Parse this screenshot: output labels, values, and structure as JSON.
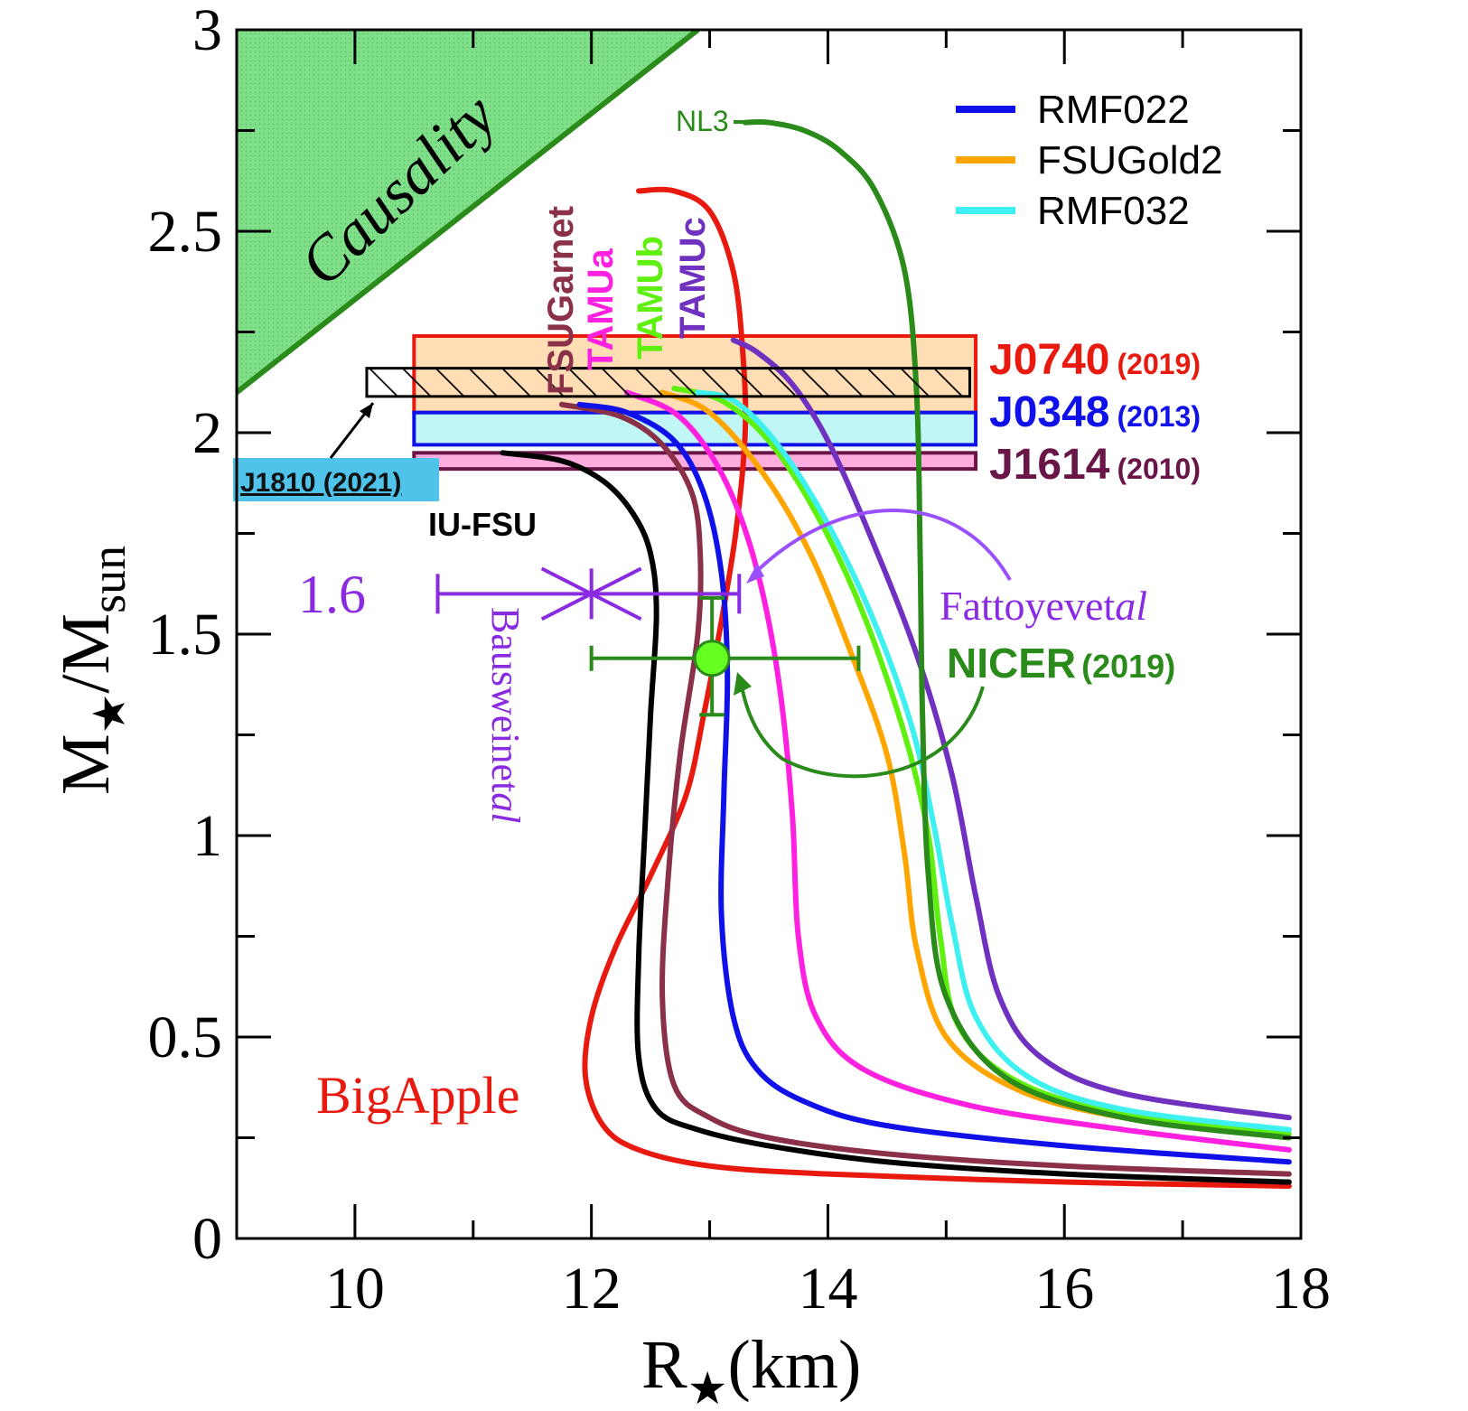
{
  "chart_data": {
    "type": "line",
    "xlabel": "R",
    "xlabel_sub": "★",
    "xlabel_unit": "(km)",
    "ylabel_main": "M",
    "ylabel_star": "★",
    "ylabel_mid": "/M",
    "ylabel_sub": "sun",
    "xlim": [
      9,
      18
    ],
    "ylim": [
      0,
      3
    ],
    "xticks": [
      10,
      12,
      14,
      16,
      18
    ],
    "yticks": [
      0,
      0.5,
      1,
      1.5,
      2,
      2.5,
      3
    ],
    "xtick_labels": [
      "10",
      "12",
      "14",
      "16",
      "18"
    ],
    "ytick_labels": [
      "0",
      "0.5",
      "1",
      "1.5",
      "2",
      "2.5",
      "3"
    ],
    "grid": false,
    "legend_position": "top-right",
    "legend": [
      {
        "name": "RMF022",
        "color": "#1010e8"
      },
      {
        "name": "FSUGold2",
        "color": "#ffa500"
      },
      {
        "name": "RMF032",
        "color": "#3ff0f0"
      }
    ],
    "causality": {
      "label": "Causality",
      "x": [
        9,
        9,
        12.9
      ],
      "y": [
        2.1,
        3,
        3
      ],
      "color": "#7fe089",
      "edge": "#2a8a1a"
    },
    "series": [
      {
        "name": "",
        "curve_label": "BigApple",
        "color": "#e81a10",
        "x": [
          17.9,
          16,
          14,
          13,
          12.4,
          12.1,
          11.95,
          12.0,
          12.2,
          12.5,
          12.8,
          12.95,
          13.08,
          13.22,
          13.3,
          13.28,
          13.2,
          13.0,
          12.7,
          12.4
        ],
        "y": [
          0.13,
          0.14,
          0.16,
          0.18,
          0.22,
          0.28,
          0.4,
          0.55,
          0.72,
          0.9,
          1.1,
          1.3,
          1.5,
          1.75,
          2.0,
          2.2,
          2.4,
          2.55,
          2.6,
          2.6
        ]
      },
      {
        "name": "",
        "curve_label": "IU-FSU",
        "color": "#000000",
        "x": [
          17.9,
          16,
          14.5,
          13.5,
          12.9,
          12.55,
          12.4,
          12.4,
          12.45,
          12.5,
          12.55,
          12.5,
          12.35,
          12.1,
          11.75,
          11.25
        ],
        "y": [
          0.14,
          0.16,
          0.19,
          0.23,
          0.27,
          0.32,
          0.45,
          0.7,
          1.0,
          1.3,
          1.55,
          1.7,
          1.8,
          1.88,
          1.93,
          1.95
        ]
      },
      {
        "name": "",
        "curve_label": "FSUGarnet",
        "color": "#8a3048",
        "x": [
          17.9,
          16,
          14.5,
          13.5,
          13.0,
          12.7,
          12.6,
          12.65,
          12.75,
          12.9,
          12.92,
          12.85,
          12.6,
          12.25,
          11.75
        ],
        "y": [
          0.16,
          0.18,
          0.21,
          0.25,
          0.3,
          0.38,
          0.6,
          0.9,
          1.2,
          1.5,
          1.7,
          1.85,
          1.97,
          2.04,
          2.07
        ]
      },
      {
        "name": "RMF022",
        "color": "#1010e8",
        "x": [
          17.9,
          16,
          14.5,
          13.8,
          13.4,
          13.2,
          13.1,
          13.12,
          13.15,
          13.1,
          12.95,
          12.7,
          12.3,
          11.9
        ],
        "y": [
          0.19,
          0.23,
          0.28,
          0.34,
          0.42,
          0.55,
          0.8,
          1.1,
          1.4,
          1.65,
          1.85,
          1.98,
          2.05,
          2.07
        ]
      },
      {
        "name": "",
        "curve_label": "TAMUa",
        "color": "#ff20e0",
        "x": [
          17.9,
          16.5,
          15.2,
          14.3,
          13.9,
          13.75,
          13.7,
          13.6,
          13.45,
          13.25,
          13.0,
          12.7,
          12.3
        ],
        "y": [
          0.22,
          0.27,
          0.33,
          0.42,
          0.55,
          0.75,
          1.05,
          1.35,
          1.6,
          1.8,
          1.95,
          2.05,
          2.1
        ]
      },
      {
        "name": "FSUGold2",
        "color": "#ffa500",
        "x": [
          17.9,
          16.5,
          15.6,
          15.0,
          14.75,
          14.65,
          14.5,
          14.2,
          13.85,
          13.45,
          13.0,
          12.6
        ],
        "y": [
          0.25,
          0.3,
          0.37,
          0.5,
          0.72,
          0.95,
          1.2,
          1.45,
          1.7,
          1.9,
          2.05,
          2.1
        ]
      },
      {
        "name": "",
        "curve_label": "TAMUb",
        "color": "#60f010",
        "x": [
          17.9,
          16.5,
          15.6,
          15.1,
          14.95,
          14.85,
          14.65,
          14.3,
          13.9,
          13.5,
          13.1,
          12.7
        ],
        "y": [
          0.26,
          0.31,
          0.39,
          0.53,
          0.75,
          1.0,
          1.25,
          1.55,
          1.8,
          1.98,
          2.08,
          2.11
        ]
      },
      {
        "name": "RMF032",
        "color": "#3ff0f0",
        "x": [
          17.9,
          16.5,
          15.7,
          15.25,
          15.05,
          14.9,
          14.7,
          14.35,
          13.95,
          13.55,
          13.2,
          12.9
        ],
        "y": [
          0.27,
          0.32,
          0.4,
          0.55,
          0.78,
          1.02,
          1.28,
          1.56,
          1.8,
          1.98,
          2.08,
          2.1
        ]
      },
      {
        "name": "",
        "curve_label": "TAMUc",
        "color": "#7030c0",
        "x": [
          17.9,
          16.5,
          15.8,
          15.45,
          15.25,
          15.05,
          14.75,
          14.35,
          14.0,
          13.7,
          13.4,
          13.2
        ],
        "y": [
          0.3,
          0.36,
          0.45,
          0.6,
          0.85,
          1.15,
          1.45,
          1.75,
          1.98,
          2.12,
          2.2,
          2.23
        ]
      },
      {
        "name": "",
        "curve_label": "NL3",
        "color": "#2a8a1a",
        "x": [
          17.9,
          16.5,
          15.5,
          15.0,
          14.85,
          14.8,
          14.78,
          14.75,
          14.65,
          14.4,
          14.1,
          13.8,
          13.5,
          13.3
        ],
        "y": [
          0.25,
          0.3,
          0.4,
          0.6,
          0.9,
          1.3,
          1.7,
          2.1,
          2.4,
          2.6,
          2.7,
          2.75,
          2.77,
          2.77
        ]
      }
    ],
    "mass_bands": [
      {
        "label": "J0740",
        "year": "(2019)",
        "x": [
          10.5,
          15.25
        ],
        "y": [
          2.05,
          2.24
        ],
        "fill": "#ffd7a8",
        "edge": "#e81a10",
        "text_color": "#e81a10"
      },
      {
        "label": "J0348",
        "year": "(2013)",
        "x": [
          10.5,
          15.25
        ],
        "y": [
          1.97,
          2.05
        ],
        "fill": "#b6f5f5",
        "edge": "#1010e8",
        "text_color": "#1010e8"
      },
      {
        "label": "J1614",
        "year": "(2010)",
        "x": [
          10.5,
          15.25
        ],
        "y": [
          1.91,
          1.95
        ],
        "fill": "#ff9fd8",
        "edge": "#6a1548",
        "text_color": "#6a1548"
      }
    ],
    "hatched_band": {
      "label": "J1810 (2021)",
      "x": [
        10.1,
        15.2
      ],
      "y": [
        2.09,
        2.16
      ]
    },
    "constraints": [
      {
        "label_a": "Bausweinet",
        "label_b": "al",
        "value_label": "1.6",
        "color": "#8a2be2",
        "x": 12.0,
        "y": 1.6,
        "xerr": [
          10.7,
          13.25
        ]
      },
      {
        "label_a": "Fattoyevet",
        "label_b": "al",
        "color": "#8a2be2"
      },
      {
        "label": "NICER",
        "year": "(2019)",
        "color": "#2a8a1a",
        "x": 13.02,
        "y": 1.44,
        "xerr": [
          12.0,
          14.26
        ],
        "yerr": [
          1.3,
          1.59
        ]
      }
    ]
  }
}
